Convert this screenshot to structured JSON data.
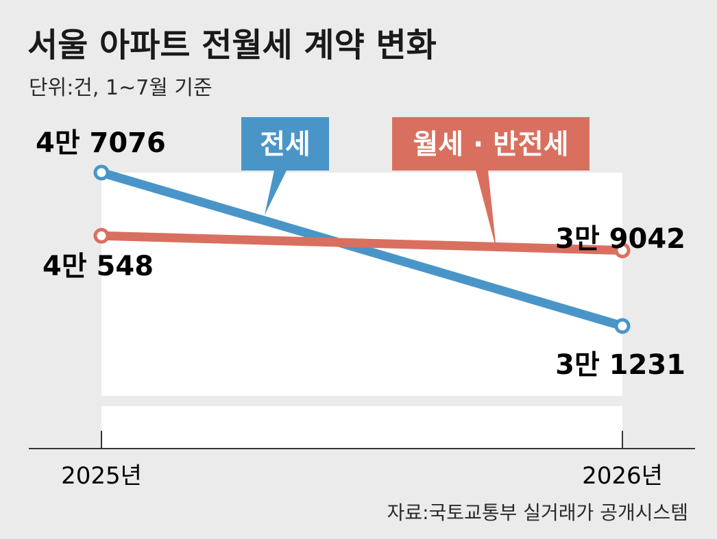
{
  "chart_data": {
    "type": "line",
    "title": "서울 아파트 전월세 계약 변화",
    "subtitle": "단위:건, 1~7월 기준",
    "source": "자료:국토교통부 실거래가 공개시스템",
    "categories": [
      "2025년",
      "2026년"
    ],
    "ylim": [
      0,
      50000
    ],
    "grid": false,
    "series": [
      {
        "name": "전세",
        "values": [
          47076,
          31231
        ],
        "labels": [
          "4만 7076",
          "3만 1231"
        ],
        "color": "#4a95c8"
      },
      {
        "name": "월세 · 반전세",
        "values": [
          40548,
          39042
        ],
        "labels": [
          "4만 548",
          "3만 9042"
        ],
        "color": "#d9705f"
      }
    ]
  }
}
